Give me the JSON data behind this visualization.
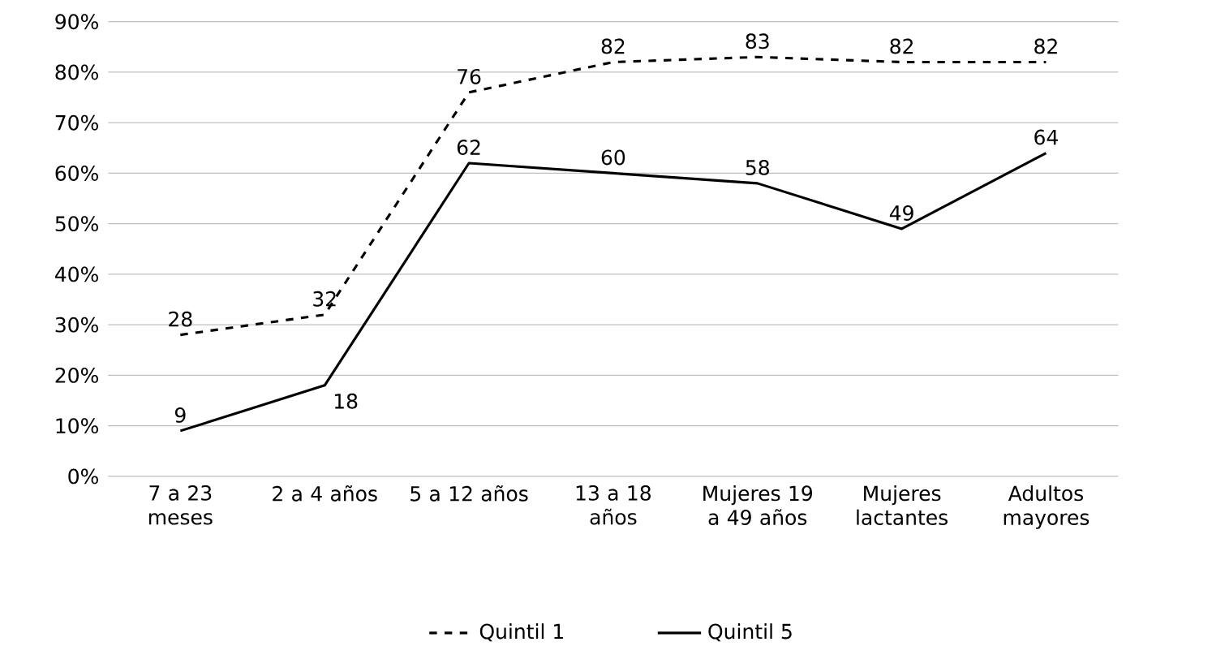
{
  "chart_data": {
    "type": "line",
    "categories": [
      "7 a 23 meses",
      "2 a 4 años",
      "5 a 12 años",
      "13 a 18 años",
      "Mujeres 19 a 49 años",
      "Mujeres lactantes",
      "Adultos mayores"
    ],
    "series": [
      {
        "name": "Quintil 1",
        "color": "#000000",
        "line_style": "dashed",
        "values": [
          28,
          32,
          76,
          82,
          83,
          82,
          82
        ]
      },
      {
        "name": "Quintil 5",
        "color": "#000000",
        "line_style": "solid",
        "values": [
          9,
          18,
          62,
          60,
          58,
          49,
          64
        ]
      }
    ],
    "ylim": [
      0,
      90
    ],
    "yticks": [
      {
        "value": 0,
        "label": "0%"
      },
      {
        "value": 10,
        "label": "10%"
      },
      {
        "value": 20,
        "label": "20%"
      },
      {
        "value": 30,
        "label": "30%"
      },
      {
        "value": 40,
        "label": "40%"
      },
      {
        "value": 50,
        "label": "50%"
      },
      {
        "value": 60,
        "label": "60%"
      },
      {
        "value": 70,
        "label": "70%"
      },
      {
        "value": 80,
        "label": "80%"
      },
      {
        "value": 90,
        "label": "90%"
      }
    ],
    "grid": "y",
    "legend": "bottom",
    "data_labels": true,
    "marker": "none"
  }
}
